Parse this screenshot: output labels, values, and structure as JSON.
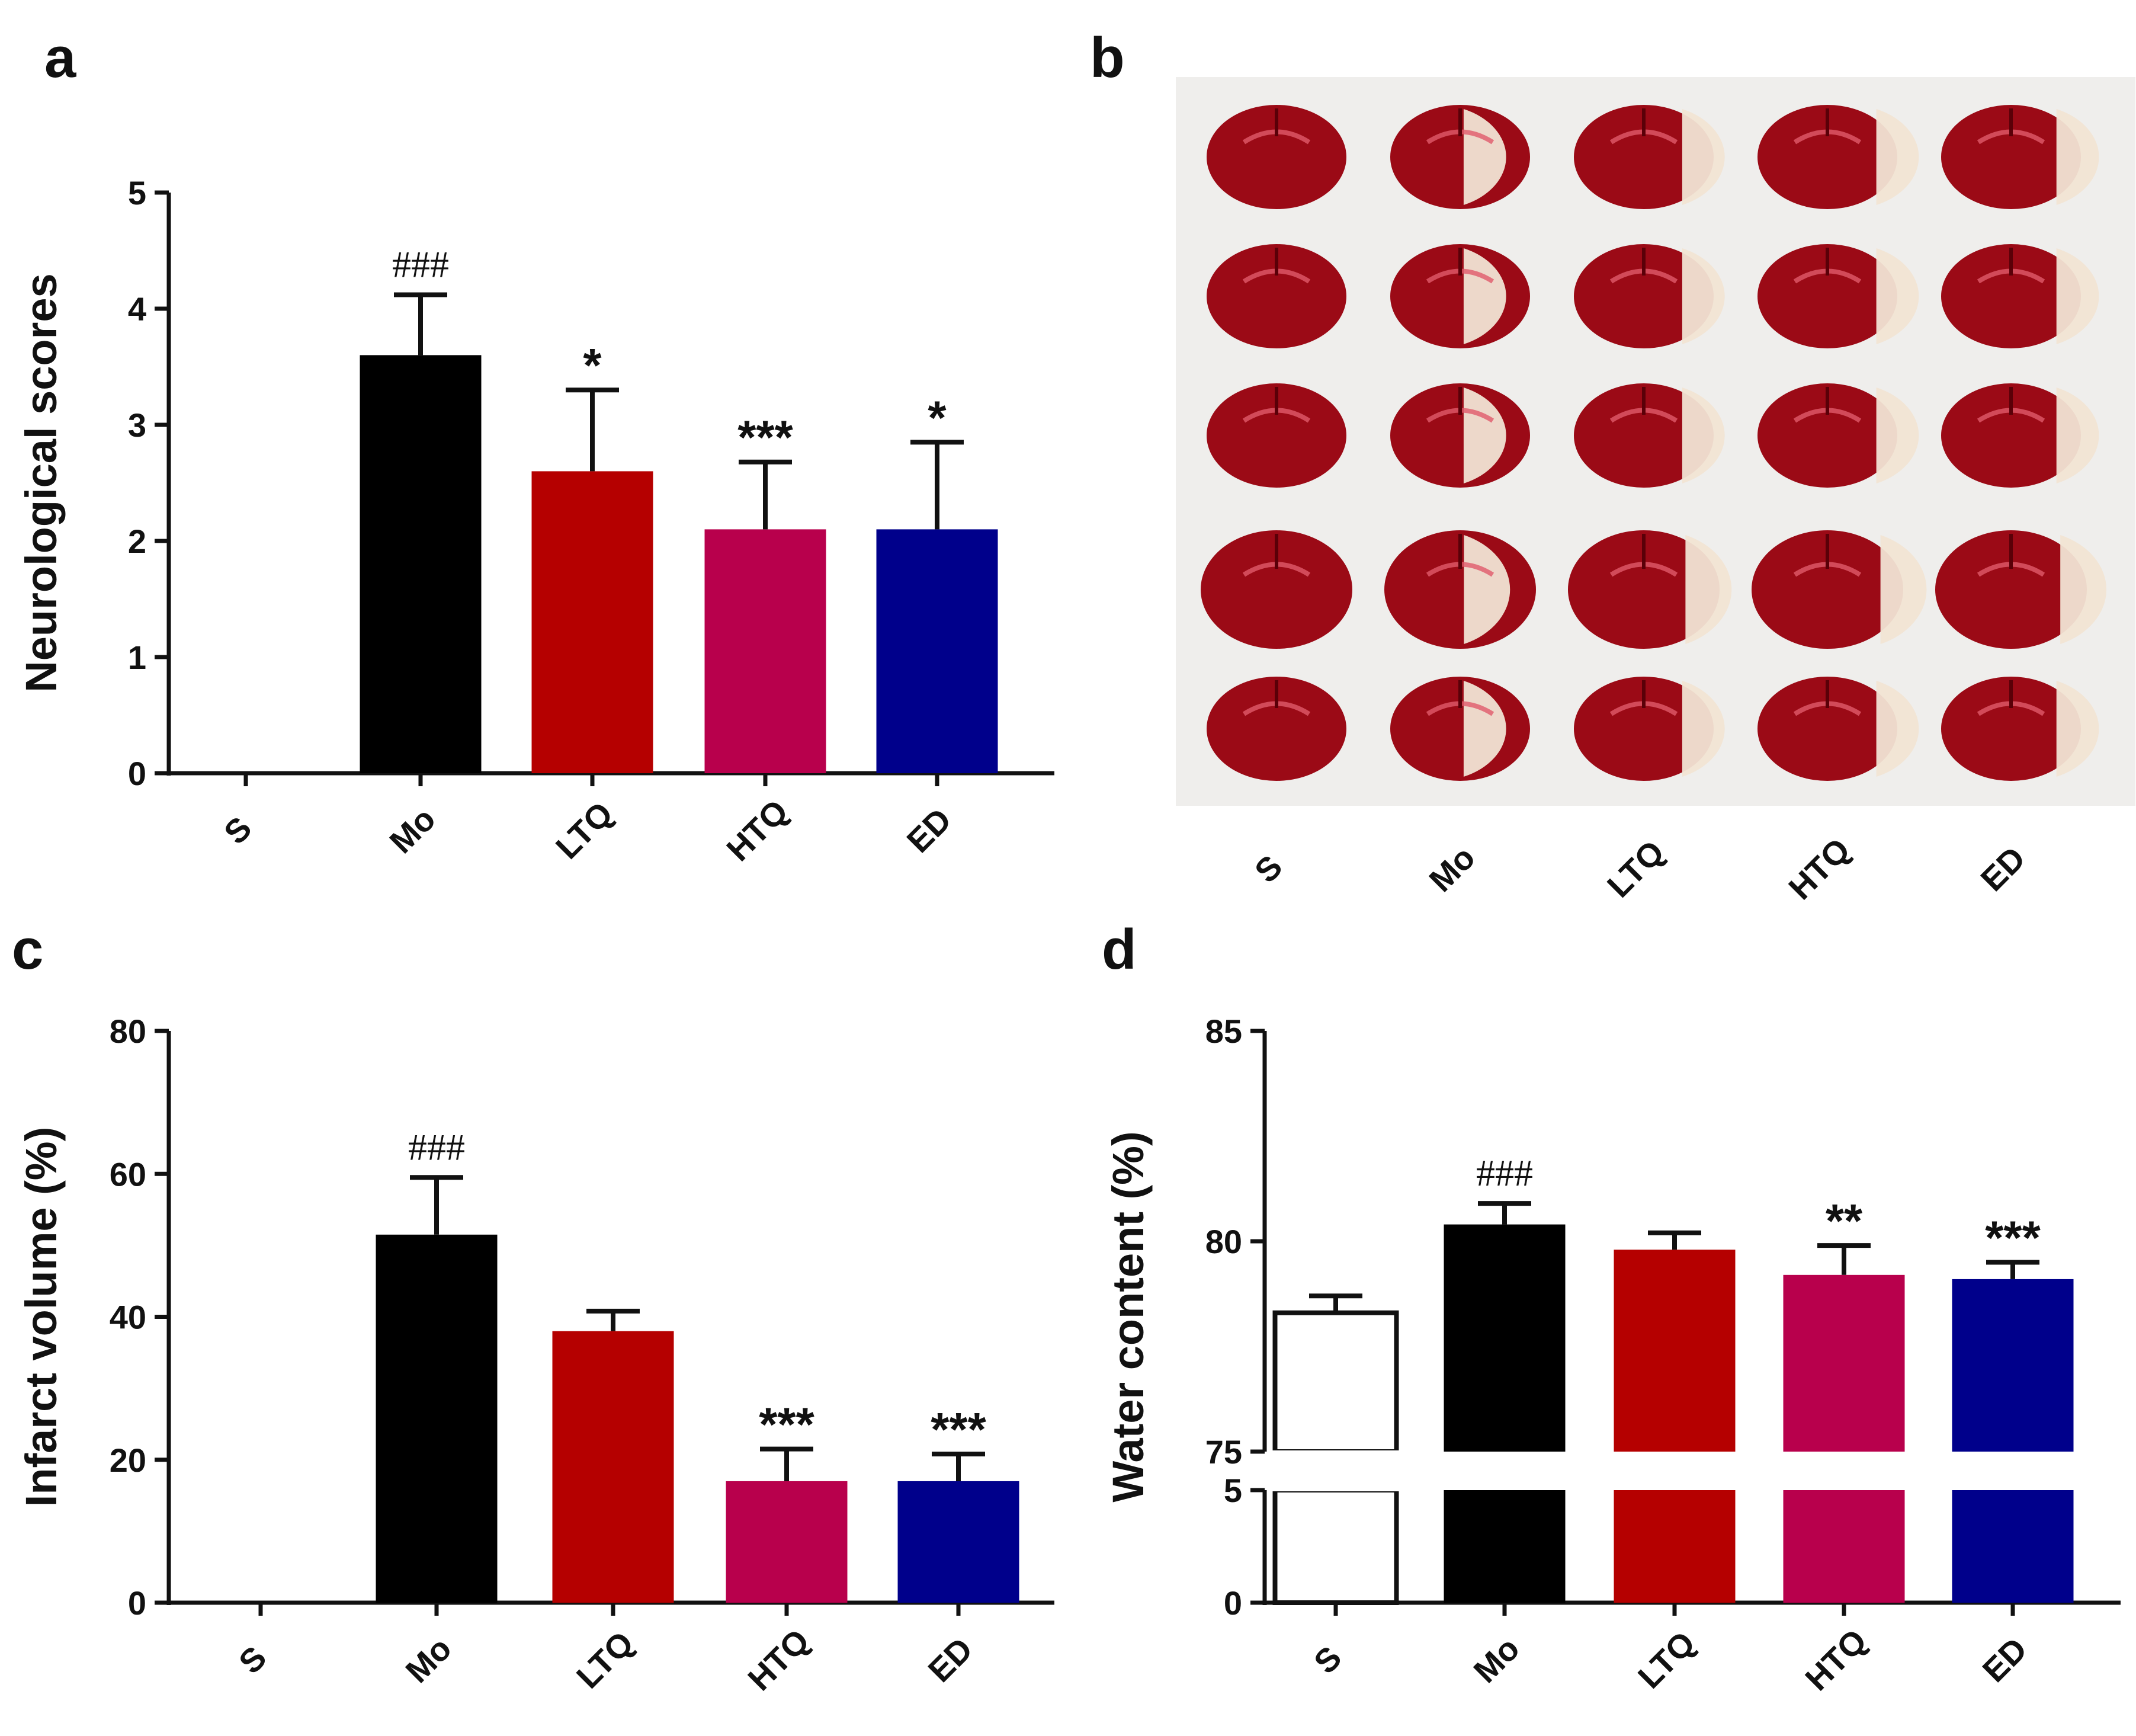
{
  "colors": {
    "S": "#ffffff",
    "Mo": "#000000",
    "LTQ": "#b50000",
    "HTQ": "#b8004c",
    "ED": "#00008b",
    "axis": "#111111",
    "photo_bg": "#efeeec",
    "tissue_red": "#9b0a16",
    "tissue_pale": "#f1e4d4"
  },
  "panel_b": {
    "letter": "b",
    "groups": [
      "S",
      "Mo",
      "LTQ",
      "HTQ",
      "ED"
    ],
    "rows": 5,
    "image_alt": "TTC-stained coronal brain slices"
  },
  "chart_data": [
    {
      "panel": "a",
      "type": "bar",
      "title": "",
      "xlabel": "",
      "ylabel": "Neurological scores",
      "categories": [
        "S",
        "Mo",
        "LTQ",
        "HTQ",
        "ED"
      ],
      "values": [
        0,
        3.6,
        2.6,
        2.1,
        2.1
      ],
      "errors": [
        0,
        0.52,
        0.7,
        0.58,
        0.75
      ],
      "annotations": [
        "",
        "###",
        "*",
        "***",
        "*"
      ],
      "ylim": [
        0,
        5
      ],
      "yticks": [
        0,
        1,
        2,
        3,
        4,
        5
      ],
      "grid": false
    },
    {
      "panel": "c",
      "type": "bar",
      "title": "",
      "xlabel": "",
      "ylabel": "Infarct volume (%)",
      "categories": [
        "S",
        "Mo",
        "LTQ",
        "HTQ",
        "ED"
      ],
      "values": [
        0,
        51.5,
        38,
        17,
        17
      ],
      "errors": [
        0,
        8,
        2.8,
        4.5,
        3.8
      ],
      "annotations": [
        "",
        "###",
        "",
        "***",
        "***"
      ],
      "ylim": [
        0,
        80
      ],
      "yticks": [
        0,
        20,
        40,
        60,
        80
      ],
      "grid": false
    },
    {
      "panel": "d",
      "type": "bar",
      "title": "",
      "xlabel": "",
      "ylabel": "Water content (%)",
      "categories": [
        "S",
        "Mo",
        "LTQ",
        "HTQ",
        "ED"
      ],
      "values": [
        78.3,
        80.4,
        79.8,
        79.2,
        79.1
      ],
      "errors": [
        0.4,
        0.5,
        0.4,
        0.7,
        0.4
      ],
      "annotations": [
        "",
        "###",
        "",
        "**",
        "***"
      ],
      "ylim": [
        0,
        85
      ],
      "axis_break": {
        "lower": [
          0,
          5
        ],
        "upper": [
          75,
          85
        ]
      },
      "yticks": [
        0,
        5,
        75,
        80,
        85
      ],
      "grid": false
    }
  ]
}
